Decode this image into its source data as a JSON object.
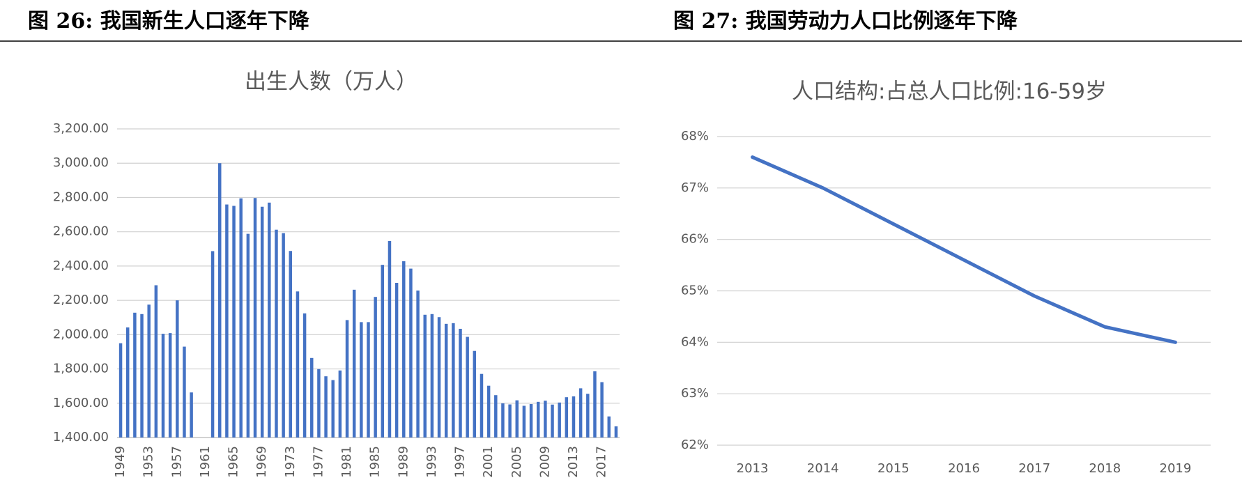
{
  "headings": [
    "图 26:  我国新生人口逐年下降",
    "图 27:  我国劳动力人口比例逐年下降"
  ],
  "chart_data": [
    {
      "type": "bar",
      "title": "出生人数（万人）",
      "color": "#4472c4",
      "grid": true,
      "categories": [
        "1949",
        null,
        null,
        null,
        "1953",
        null,
        null,
        null,
        "1957",
        null,
        null,
        null,
        "1961",
        null,
        null,
        null,
        "1965",
        null,
        null,
        null,
        "1969",
        null,
        null,
        null,
        "1973",
        null,
        null,
        null,
        "1977",
        null,
        null,
        null,
        "1981",
        null,
        null,
        null,
        "1985",
        null,
        null,
        null,
        "1989",
        null,
        null,
        null,
        "1993",
        null,
        null,
        null,
        "1997",
        null,
        null,
        null,
        "2001",
        null,
        null,
        null,
        "2005",
        null,
        null,
        null,
        "2009",
        null,
        null,
        null,
        "2013",
        null,
        null,
        null,
        "2017",
        null,
        null
      ],
      "values": [
        1950,
        2042,
        2128,
        2120,
        2175,
        2288,
        2005,
        2009,
        2200,
        1930,
        1663,
        null,
        null,
        2487,
        3000,
        2759,
        2751,
        2795,
        2588,
        2797,
        2746,
        2770,
        2612,
        2592,
        2488,
        2252,
        2124,
        1864,
        1799,
        1757,
        1735,
        1791,
        2085,
        2262,
        2073,
        2073,
        2220,
        2407,
        2546,
        2302,
        2428,
        2385,
        2257,
        2116,
        2120,
        2102,
        2063,
        2067,
        2034,
        1987,
        1905,
        1771,
        1702,
        1647,
        1599,
        1593,
        1617,
        1585,
        1595,
        1608,
        1615,
        1592,
        1604,
        1635,
        1640,
        1687,
        1655,
        1786,
        1723,
        1523,
        1465
      ],
      "ylim": [
        1400,
        3200
      ],
      "yticks": [
        {
          "value": 1400,
          "label": "1,400.00"
        },
        {
          "value": 1600,
          "label": "1,600.00"
        },
        {
          "value": 1800,
          "label": "1,800.00"
        },
        {
          "value": 2000,
          "label": "2,000.00"
        },
        {
          "value": 2200,
          "label": "2,200.00"
        },
        {
          "value": 2400,
          "label": "2,400.00"
        },
        {
          "value": 2600,
          "label": "2,600.00"
        },
        {
          "value": 2800,
          "label": "2,800.00"
        },
        {
          "value": 3000,
          "label": "3,000.00"
        },
        {
          "value": 3200,
          "label": "3,200.00"
        }
      ]
    },
    {
      "type": "line",
      "title": "人口结构:占总人口比例:16-59岁",
      "color": "#4472c4",
      "grid": true,
      "categories": [
        "2013",
        "2014",
        "2015",
        "2016",
        "2017",
        "2018",
        "2019"
      ],
      "values": [
        67.6,
        67.0,
        66.3,
        65.6,
        64.9,
        64.3,
        64.0
      ],
      "ylim": [
        62,
        68
      ],
      "yticks": [
        {
          "value": 62,
          "label": "62%"
        },
        {
          "value": 63,
          "label": "63%"
        },
        {
          "value": 64,
          "label": "64%"
        },
        {
          "value": 65,
          "label": "65%"
        },
        {
          "value": 66,
          "label": "66%"
        },
        {
          "value": 67,
          "label": "67%"
        },
        {
          "value": 68,
          "label": "68%"
        }
      ]
    }
  ]
}
